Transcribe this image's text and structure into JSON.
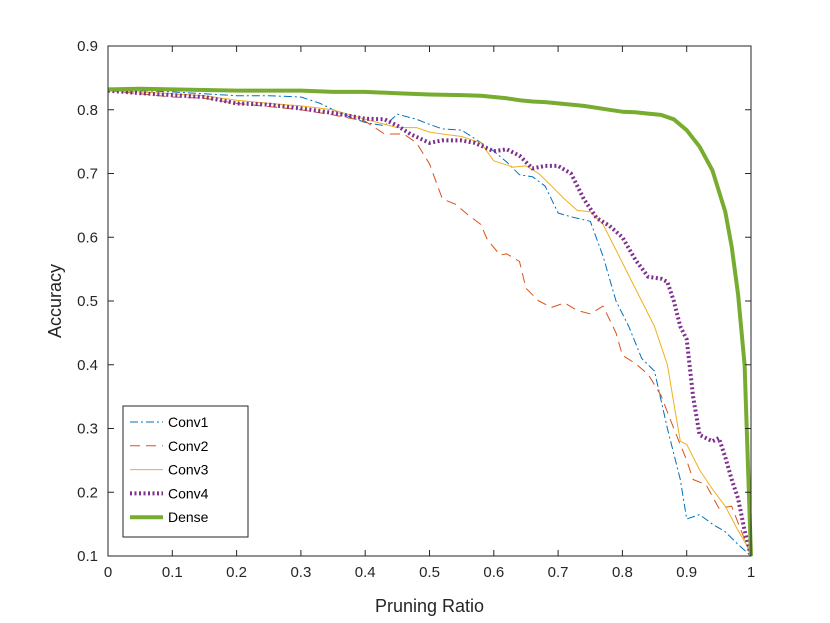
{
  "chart_data": {
    "type": "line",
    "title": "",
    "xlabel": "Pruning Ratio",
    "ylabel": "Accuracy",
    "xlim": [
      0,
      1
    ],
    "ylim": [
      0.1,
      0.9
    ],
    "xticks": [
      "0",
      "0.1",
      "0.2",
      "0.3",
      "0.4",
      "0.5",
      "0.6",
      "0.7",
      "0.8",
      "0.9",
      "1"
    ],
    "yticks": [
      "0.1",
      "0.2",
      "0.3",
      "0.4",
      "0.5",
      "0.6",
      "0.7",
      "0.8",
      "0.9"
    ],
    "grid": false,
    "legend_position": "bottom-left",
    "series": [
      {
        "name": "Conv1",
        "color": "#0072BD",
        "style": "dashdot",
        "x": [
          0,
          0.05,
          0.1,
          0.15,
          0.2,
          0.25,
          0.3,
          0.33,
          0.36,
          0.4,
          0.43,
          0.45,
          0.48,
          0.5,
          0.52,
          0.55,
          0.57,
          0.6,
          0.62,
          0.64,
          0.66,
          0.68,
          0.7,
          0.72,
          0.75,
          0.77,
          0.79,
          0.81,
          0.83,
          0.85,
          0.87,
          0.89,
          0.9,
          0.92,
          0.94,
          0.96,
          0.98,
          1.0
        ],
        "y": [
          0.83,
          0.83,
          0.828,
          0.825,
          0.822,
          0.822,
          0.82,
          0.81,
          0.795,
          0.78,
          0.775,
          0.793,
          0.785,
          0.777,
          0.77,
          0.768,
          0.755,
          0.735,
          0.718,
          0.698,
          0.695,
          0.68,
          0.638,
          0.632,
          0.625,
          0.57,
          0.5,
          0.46,
          0.41,
          0.39,
          0.3,
          0.22,
          0.158,
          0.165,
          0.15,
          0.138,
          0.118,
          0.1
        ]
      },
      {
        "name": "Conv2",
        "color": "#D95319",
        "style": "dashed",
        "x": [
          0,
          0.05,
          0.1,
          0.15,
          0.2,
          0.25,
          0.3,
          0.35,
          0.4,
          0.43,
          0.46,
          0.48,
          0.5,
          0.52,
          0.54,
          0.56,
          0.58,
          0.59,
          0.61,
          0.62,
          0.64,
          0.65,
          0.67,
          0.69,
          0.71,
          0.73,
          0.75,
          0.77,
          0.79,
          0.8,
          0.82,
          0.84,
          0.86,
          0.88,
          0.9,
          0.91,
          0.93,
          0.95,
          0.97,
          1.0
        ],
        "y": [
          0.83,
          0.825,
          0.82,
          0.818,
          0.81,
          0.805,
          0.8,
          0.792,
          0.782,
          0.762,
          0.762,
          0.748,
          0.715,
          0.66,
          0.652,
          0.635,
          0.62,
          0.596,
          0.572,
          0.574,
          0.562,
          0.52,
          0.5,
          0.49,
          0.497,
          0.485,
          0.48,
          0.492,
          0.45,
          0.415,
          0.402,
          0.385,
          0.352,
          0.3,
          0.25,
          0.22,
          0.212,
          0.175,
          0.178,
          0.1
        ]
      },
      {
        "name": "Conv3",
        "color": "#EDB120",
        "style": "solid",
        "x": [
          0,
          0.05,
          0.1,
          0.15,
          0.2,
          0.25,
          0.3,
          0.35,
          0.4,
          0.45,
          0.48,
          0.5,
          0.52,
          0.55,
          0.58,
          0.6,
          0.63,
          0.65,
          0.67,
          0.69,
          0.71,
          0.73,
          0.75,
          0.77,
          0.79,
          0.81,
          0.83,
          0.85,
          0.87,
          0.88,
          0.89,
          0.9,
          0.92,
          0.94,
          0.96,
          0.98,
          1.0
        ],
        "y": [
          0.83,
          0.828,
          0.825,
          0.822,
          0.815,
          0.81,
          0.806,
          0.8,
          0.785,
          0.772,
          0.772,
          0.765,
          0.762,
          0.758,
          0.748,
          0.72,
          0.71,
          0.712,
          0.7,
          0.68,
          0.66,
          0.642,
          0.64,
          0.62,
          0.58,
          0.54,
          0.5,
          0.46,
          0.4,
          0.34,
          0.28,
          0.275,
          0.235,
          0.205,
          0.178,
          0.14,
          0.105
        ]
      },
      {
        "name": "Conv4",
        "color": "#7E2F8E",
        "style": "dotted",
        "x": [
          0,
          0.05,
          0.1,
          0.15,
          0.2,
          0.25,
          0.3,
          0.35,
          0.4,
          0.43,
          0.45,
          0.47,
          0.5,
          0.52,
          0.55,
          0.57,
          0.6,
          0.62,
          0.64,
          0.66,
          0.68,
          0.7,
          0.72,
          0.74,
          0.76,
          0.78,
          0.8,
          0.82,
          0.84,
          0.86,
          0.87,
          0.88,
          0.89,
          0.9,
          0.91,
          0.92,
          0.93,
          0.94,
          0.95,
          0.96,
          0.97,
          0.98,
          0.99,
          1.0
        ],
        "y": [
          0.83,
          0.826,
          0.823,
          0.82,
          0.81,
          0.808,
          0.802,
          0.795,
          0.786,
          0.785,
          0.775,
          0.762,
          0.748,
          0.752,
          0.752,
          0.748,
          0.735,
          0.738,
          0.728,
          0.708,
          0.712,
          0.712,
          0.7,
          0.66,
          0.63,
          0.618,
          0.6,
          0.565,
          0.538,
          0.535,
          0.53,
          0.5,
          0.46,
          0.44,
          0.35,
          0.29,
          0.285,
          0.28,
          0.285,
          0.255,
          0.22,
          0.19,
          0.14,
          0.1
        ]
      },
      {
        "name": "Dense",
        "color": "#77AC30",
        "style": "solid-thick",
        "x": [
          0,
          0.05,
          0.1,
          0.15,
          0.2,
          0.25,
          0.3,
          0.35,
          0.4,
          0.45,
          0.5,
          0.55,
          0.58,
          0.6,
          0.62,
          0.64,
          0.66,
          0.68,
          0.7,
          0.72,
          0.74,
          0.76,
          0.78,
          0.8,
          0.82,
          0.84,
          0.86,
          0.88,
          0.9,
          0.92,
          0.94,
          0.96,
          0.97,
          0.98,
          0.99,
          1.0
        ],
        "y": [
          0.832,
          0.833,
          0.832,
          0.831,
          0.83,
          0.83,
          0.83,
          0.828,
          0.828,
          0.826,
          0.824,
          0.823,
          0.822,
          0.82,
          0.818,
          0.815,
          0.813,
          0.812,
          0.81,
          0.808,
          0.806,
          0.803,
          0.8,
          0.797,
          0.796,
          0.794,
          0.792,
          0.785,
          0.768,
          0.742,
          0.705,
          0.64,
          0.585,
          0.51,
          0.4,
          0.1
        ]
      }
    ]
  }
}
